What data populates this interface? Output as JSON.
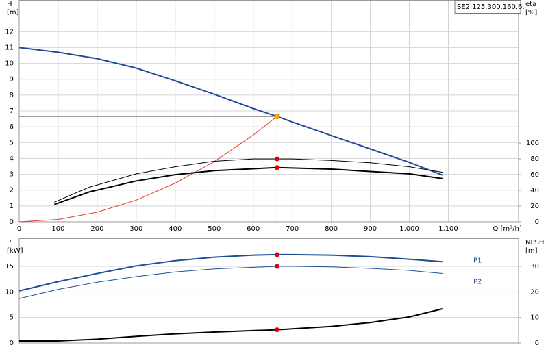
{
  "chart_data": [
    {
      "type": "line",
      "title": "SE2.125.300.160.6.",
      "y_label": "H",
      "y_unit": "[m]",
      "y2_label": "eta",
      "y2_unit": "[%]",
      "x_label": "Q [m³/h]",
      "xlim": [
        0,
        1280
      ],
      "xticks": [
        0,
        100,
        200,
        300,
        400,
        500,
        600,
        700,
        800,
        900,
        {
          "value": 1000,
          "label": "1,000"
        },
        {
          "value": 1100,
          "label": "1,100"
        }
      ],
      "ylim": [
        0,
        14
      ],
      "yticks": [
        0,
        1,
        2,
        3,
        4,
        5,
        6,
        7,
        8,
        9,
        10,
        11,
        12
      ],
      "y2lim": [
        0,
        282
      ],
      "y2ticks": [
        0,
        20,
        40,
        60,
        80,
        100
      ],
      "grid": true,
      "series": [
        {
          "color": "#1f4e96",
          "line_width": 2,
          "x": [
            0,
            100,
            200,
            300,
            400,
            500,
            600,
            661,
            700,
            800,
            900,
            1000,
            1085
          ],
          "values": [
            11,
            10.7,
            10.3,
            9.7,
            8.9,
            8.05,
            7.15,
            6.65,
            6.3,
            5.45,
            4.6,
            3.75,
            2.95
          ]
        },
        {
          "color": "#e83a2e",
          "line_width": 1,
          "x": [
            0,
            100,
            200,
            300,
            400,
            500,
            600,
            661
          ],
          "values": [
            0,
            0.15,
            0.61,
            1.37,
            2.44,
            3.8,
            5.48,
            6.65
          ]
        },
        {
          "color": "#000000",
          "line_width": 1,
          "axis": "y2",
          "x": [
            90,
            180,
            300,
            400,
            500,
            600,
            700,
            800,
            900,
            1000,
            1085
          ],
          "values": [
            25,
            44,
            61,
            70,
            77,
            80,
            80,
            78,
            75,
            70,
            63
          ]
        },
        {
          "color": "#000000",
          "line_width": 2,
          "axis": "y2",
          "x": [
            90,
            180,
            300,
            400,
            500,
            661,
            800,
            900,
            1000,
            1085
          ],
          "values": [
            22,
            38,
            52,
            60,
            65,
            69,
            67,
            64,
            61,
            55
          ]
        }
      ],
      "points": [
        {
          "x": 661,
          "y": 6.65,
          "color": "#f5b400",
          "guides": true
        },
        {
          "x": 661,
          "y": 80,
          "color": "#e00000",
          "axis": "y2"
        },
        {
          "x": 661,
          "y": 69,
          "color": "#e00000",
          "axis": "y2"
        }
      ]
    },
    {
      "type": "line",
      "y_label": "P",
      "y_unit": "[kW]",
      "y2_label": "NPSH",
      "y2_unit": "[m]",
      "xlim": [
        0,
        1280
      ],
      "ylim": [
        0,
        20.5
      ],
      "yticks": [
        0,
        5,
        10,
        15
      ],
      "y2lim": [
        0,
        41
      ],
      "y2ticks": [
        0,
        10,
        20,
        30
      ],
      "grid": true,
      "series": [
        {
          "name": "P1",
          "color": "#1f4e96",
          "line_width": 2,
          "x": [
            0,
            100,
            200,
            300,
            400,
            500,
            600,
            661,
            700,
            800,
            900,
            1000,
            1085
          ],
          "values": [
            10.2,
            12.0,
            13.6,
            15.1,
            16.1,
            16.8,
            17.2,
            17.3,
            17.3,
            17.2,
            16.9,
            16.4,
            15.9
          ]
        },
        {
          "name": "P2",
          "color": "#1f4e96",
          "line_width": 1,
          "x": [
            0,
            100,
            200,
            300,
            400,
            500,
            661,
            700,
            800,
            900,
            1000,
            1085
          ],
          "values": [
            8.7,
            10.5,
            11.9,
            13.0,
            13.9,
            14.5,
            15.0,
            15.0,
            14.9,
            14.6,
            14.2,
            13.6
          ]
        },
        {
          "color": "#000000",
          "line_width": 2,
          "axis": "y2",
          "x": [
            0,
            100,
            200,
            300,
            400,
            500,
            661,
            800,
            900,
            1000,
            1085
          ],
          "values": [
            0.8,
            0.8,
            1.5,
            2.6,
            3.6,
            4.3,
            5.2,
            6.5,
            8.0,
            10.2,
            13.4
          ]
        }
      ],
      "points": [
        {
          "x": 661,
          "y": 17.3,
          "color": "#e00000"
        },
        {
          "x": 661,
          "y": 15.0,
          "color": "#e00000"
        },
        {
          "x": 661,
          "y": 5.2,
          "color": "#e00000",
          "axis": "y2"
        }
      ]
    }
  ]
}
